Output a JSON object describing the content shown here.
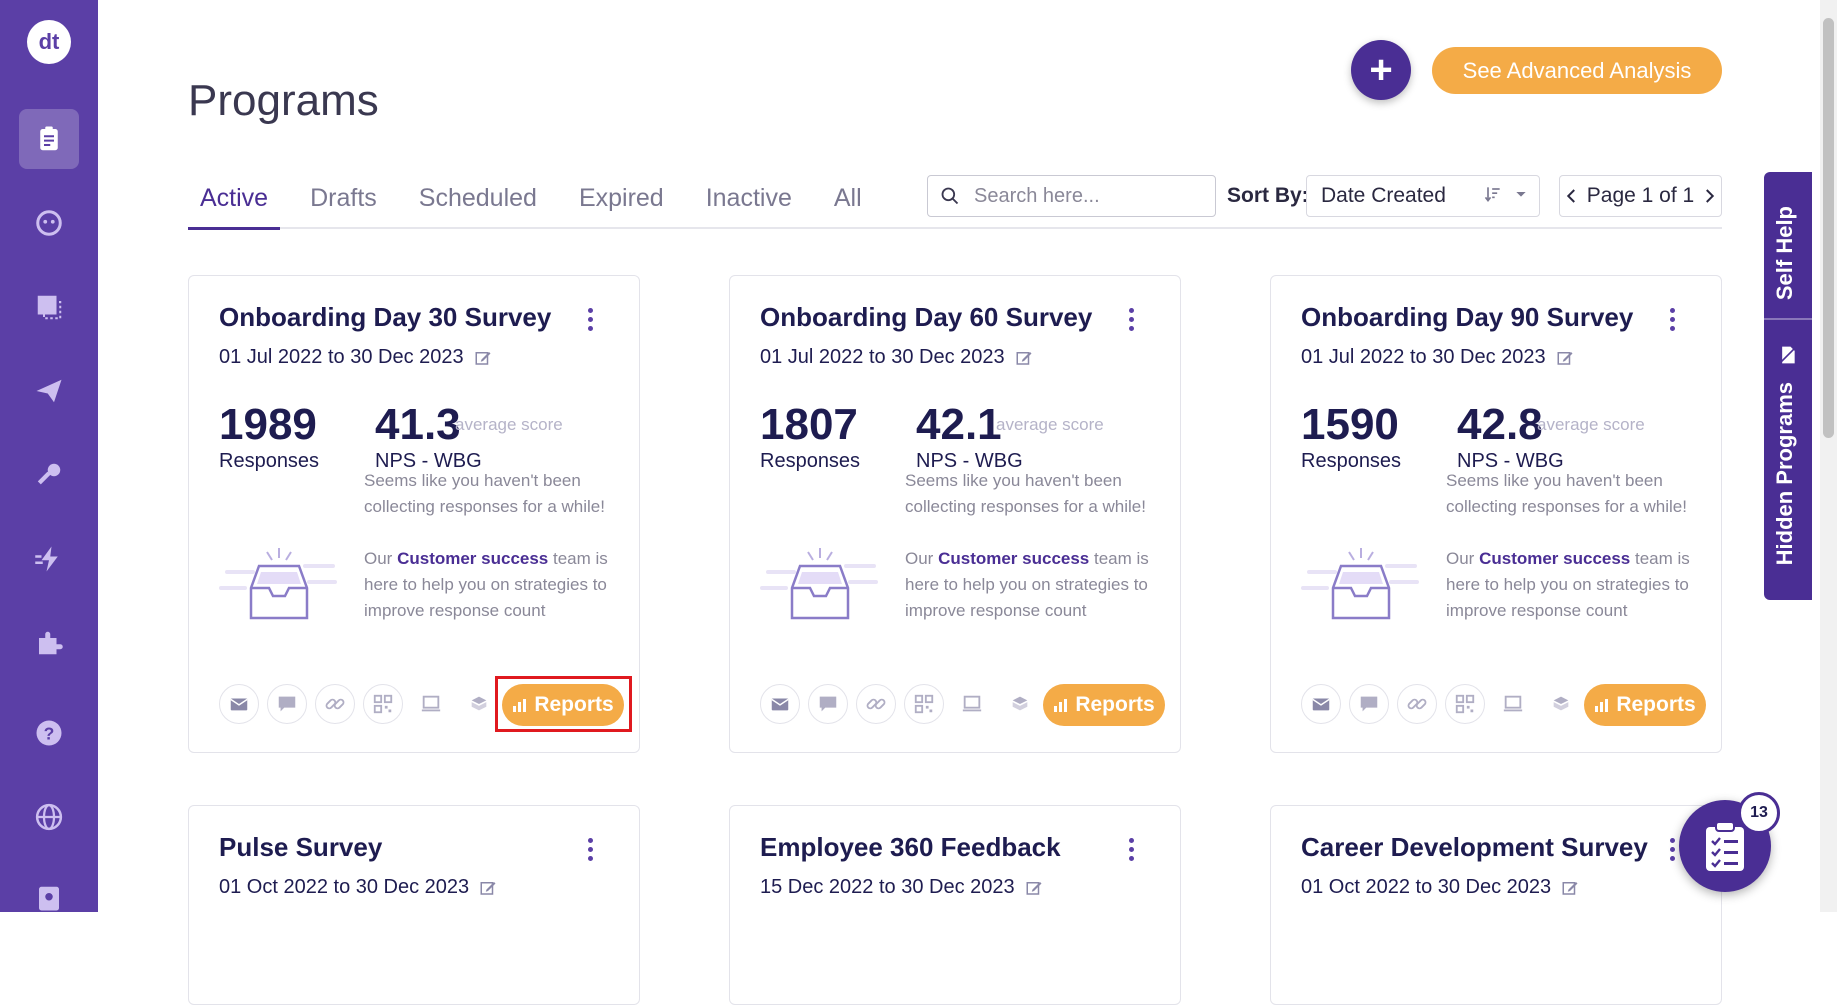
{
  "sidebar": {
    "logo": "dt",
    "items": [
      {
        "name": "programs",
        "icon": "clipboard-icon",
        "active": true
      },
      {
        "name": "contacts",
        "icon": "face-icon",
        "active": false
      },
      {
        "name": "templates",
        "icon": "window-icon",
        "active": false
      },
      {
        "name": "distribute",
        "icon": "send-icon",
        "active": false
      },
      {
        "name": "keys",
        "icon": "key-icon",
        "active": false
      },
      {
        "name": "automation",
        "icon": "bolt-icon",
        "active": false
      },
      {
        "name": "integrations",
        "icon": "puzzle-icon",
        "active": false
      },
      {
        "name": "help",
        "icon": "question-icon",
        "active": false
      },
      {
        "name": "language",
        "icon": "globe-icon",
        "active": false
      },
      {
        "name": "account",
        "icon": "badge-icon",
        "active": false
      }
    ]
  },
  "header": {
    "title": "Programs",
    "advanced_label": "See Advanced Analysis",
    "add_label": "+"
  },
  "tabs": [
    {
      "label": "Active",
      "active": true
    },
    {
      "label": "Drafts",
      "active": false
    },
    {
      "label": "Scheduled",
      "active": false
    },
    {
      "label": "Expired",
      "active": false
    },
    {
      "label": "Inactive",
      "active": false
    },
    {
      "label": "All",
      "active": false
    }
  ],
  "search": {
    "placeholder": "Search here...",
    "value": ""
  },
  "sort": {
    "label": "Sort By:",
    "value": "Date Created"
  },
  "pager": {
    "label": "Page 1 of 1"
  },
  "side_tabs": {
    "self_help": "Self Help",
    "hidden_programs": "Hidden Programs"
  },
  "empty_msg": {
    "line1": "Seems like you haven't been collecting responses for a while!",
    "line2_pre": "Our",
    "line2_link": "Customer success",
    "line2_post": "team is here to help you on strategies to improve response count"
  },
  "cards": [
    {
      "title": "Onboarding Day 30 Survey",
      "dates": "01 Jul 2022 to 30 Dec 2023",
      "responses": "1989",
      "responses_label": "Responses",
      "score": "41.3",
      "score_suffix": "average score",
      "score_label": "NPS - WBG",
      "reports_label": "Reports"
    },
    {
      "title": "Onboarding Day 60 Survey",
      "dates": "01 Jul 2022 to 30 Dec 2023",
      "responses": "1807",
      "responses_label": "Responses",
      "score": "42.1",
      "score_suffix": "average score",
      "score_label": "NPS - WBG",
      "reports_label": "Reports"
    },
    {
      "title": "Onboarding Day 90 Survey",
      "dates": "01 Jul 2022 to 30 Dec 2023",
      "responses": "1590",
      "responses_label": "Responses",
      "score": "42.8",
      "score_suffix": "average score",
      "score_label": "NPS - WBG",
      "reports_label": "Reports"
    },
    {
      "title": "Pulse Survey",
      "dates": "01 Oct 2022 to 30 Dec 2023"
    },
    {
      "title": "Employee 360 Feedback",
      "dates": "15 Dec 2022 to 30 Dec 2023"
    },
    {
      "title": "Career Development Survey",
      "dates": "01 Oct 2022 to 30 Dec 2023"
    }
  ],
  "tasks_badge": "13",
  "colors": {
    "sidebar": "#5b3fa6",
    "accent": "#4a2e94",
    "orange": "#f4ab47",
    "highlight": "#e0191f"
  }
}
